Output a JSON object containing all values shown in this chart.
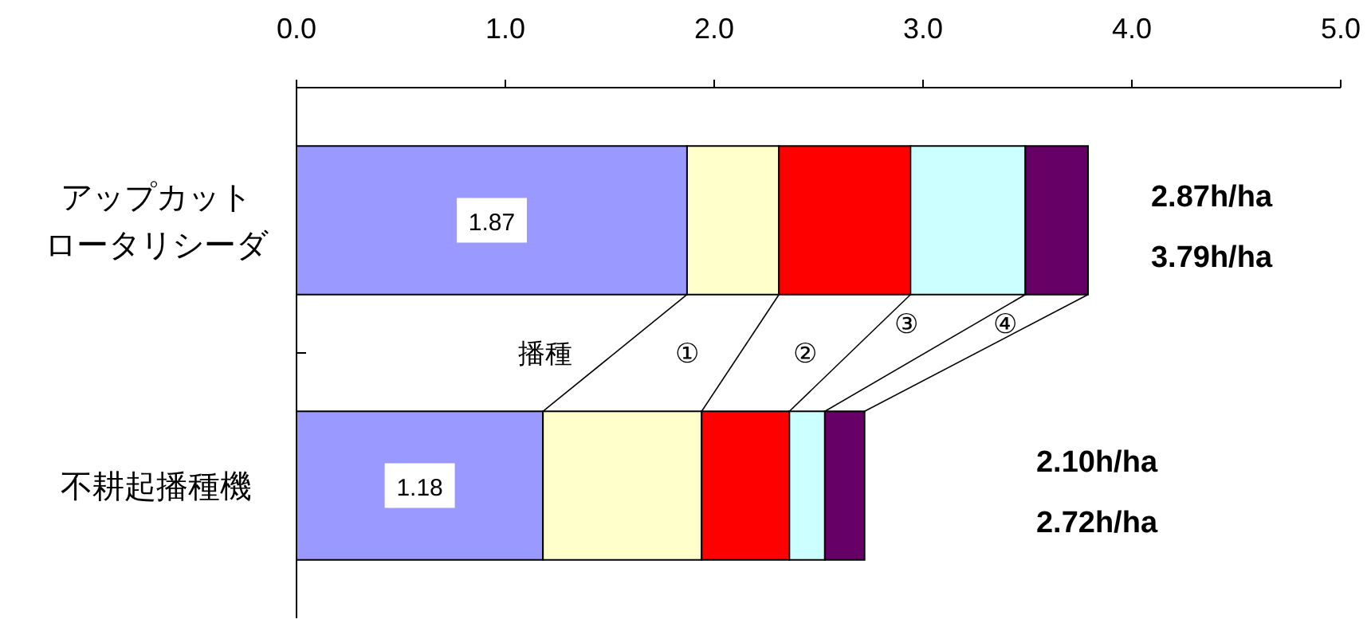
{
  "chart_data": {
    "type": "bar",
    "orientation": "horizontal",
    "stacked": true,
    "categories": [
      "アップカットロータリシーダ",
      "不耕起播種機"
    ],
    "series": [
      {
        "name": "播種",
        "color": "#9999ff",
        "values": [
          1.87,
          1.18
        ],
        "value_labels": [
          "1.87",
          "1.18"
        ]
      },
      {
        "name": "①",
        "color": "#ffffcc",
        "values": [
          0.44,
          0.76
        ]
      },
      {
        "name": "②",
        "color": "#ff0000",
        "values": [
          0.63,
          0.42
        ]
      },
      {
        "name": "③",
        "color": "#ccffff",
        "values": [
          0.55,
          0.17
        ]
      },
      {
        "name": "④",
        "color": "#660066",
        "values": [
          0.3,
          0.19
        ]
      }
    ],
    "xlim": [
      0,
      5
    ],
    "xticks": [
      {
        "value": 0,
        "label": "0.0"
      },
      {
        "value": 1,
        "label": "1.0"
      },
      {
        "value": 2,
        "label": "2.0"
      },
      {
        "value": 3,
        "label": "3.0"
      },
      {
        "value": 4,
        "label": "4.0"
      },
      {
        "value": 5,
        "label": "5.0"
      }
    ],
    "annotations": [
      "2.87h/ha",
      "3.79h/ha",
      "2.10h/ha",
      "2.72h/ha"
    ]
  }
}
